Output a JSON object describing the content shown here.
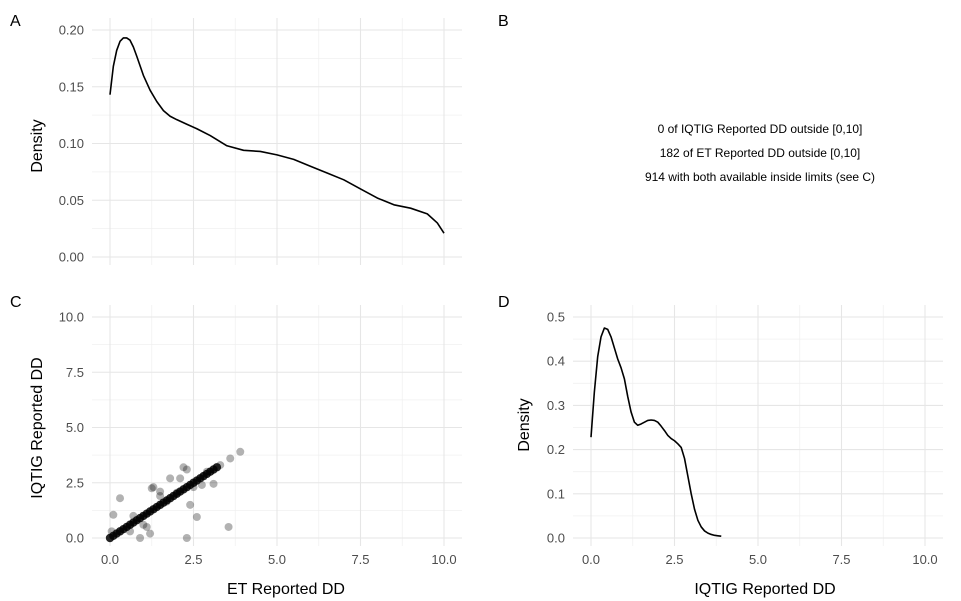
{
  "panels": {
    "a": {
      "label": "A"
    },
    "b": {
      "label": "B"
    },
    "c": {
      "label": "C"
    },
    "d": {
      "label": "D"
    }
  },
  "annotation": {
    "lines": [
      "0 of IQTIG Reported DD outside [0,10]",
      "182 of ET Reported DD outside [0,10]",
      "914 with both available inside limits (see C)"
    ]
  },
  "chart_data": [
    {
      "id": "A",
      "type": "line",
      "title": "",
      "xlabel": "",
      "ylabel": "Density",
      "xlim": [
        0,
        10
      ],
      "ylim": [
        0,
        0.2
      ],
      "xticks": [
        0,
        2.5,
        5,
        7.5,
        10
      ],
      "yticks": [
        0,
        0.05,
        0.1,
        0.15,
        0.2
      ],
      "ytick_labels": [
        "0.00",
        "0.05",
        "0.10",
        "0.15",
        "0.20"
      ],
      "show_xtick_labels": false,
      "grid": true,
      "x": [
        0,
        0.1,
        0.2,
        0.3,
        0.4,
        0.5,
        0.6,
        0.7,
        0.8,
        1.0,
        1.2,
        1.4,
        1.6,
        1.8,
        2.0,
        2.3,
        2.6,
        3.0,
        3.5,
        4.0,
        4.5,
        5.0,
        5.5,
        6.0,
        6.5,
        7.0,
        7.5,
        8.0,
        8.5,
        9.0,
        9.5,
        9.8,
        10.0
      ],
      "y": [
        0.143,
        0.168,
        0.182,
        0.19,
        0.193,
        0.193,
        0.191,
        0.185,
        0.177,
        0.16,
        0.147,
        0.137,
        0.129,
        0.124,
        0.121,
        0.117,
        0.113,
        0.107,
        0.098,
        0.094,
        0.093,
        0.09,
        0.086,
        0.08,
        0.074,
        0.068,
        0.06,
        0.052,
        0.046,
        0.043,
        0.038,
        0.03,
        0.021
      ]
    },
    {
      "id": "C",
      "type": "scatter",
      "title": "",
      "xlabel": "ET Reported DD",
      "ylabel": "IQTIG Reported DD",
      "xlim": [
        0,
        10
      ],
      "ylim": [
        0,
        10
      ],
      "xticks": [
        0,
        2.5,
        5,
        7.5,
        10
      ],
      "xtick_labels": [
        "0.0",
        "2.5",
        "5.0",
        "7.5",
        "10.0"
      ],
      "yticks": [
        0,
        2.5,
        5,
        7.5,
        10
      ],
      "ytick_labels": [
        "0.0",
        "2.5",
        "5.0",
        "7.5",
        "10.0"
      ],
      "grid": true,
      "series": [
        {
          "x": [
            0.1,
            0.3,
            0.6,
            0.9,
            1.0,
            1.2,
            1.3,
            1.5,
            1.7,
            2.2,
            2.3,
            2.3,
            2.4,
            2.6,
            2.75,
            3.1,
            3.55,
            3.9,
            0.05,
            0.7,
            1.1,
            1.25,
            1.5,
            1.8,
            2.0,
            2.1,
            2.5,
            2.9,
            3.3,
            3.6
          ],
          "y": [
            1.05,
            1.8,
            0.3,
            0.0,
            0.6,
            0.2,
            2.3,
            2.1,
            1.65,
            3.2,
            3.1,
            0.0,
            1.5,
            0.95,
            2.4,
            2.45,
            0.5,
            3.9,
            0.3,
            1.0,
            0.5,
            2.25,
            1.9,
            2.7,
            2.05,
            2.7,
            2.3,
            3.0,
            3.3,
            3.6
          ]
        },
        {
          "x": [
            0.0,
            0.1,
            0.2,
            0.3,
            0.4,
            0.5,
            0.6,
            0.7,
            0.8,
            0.9,
            1.0,
            1.1,
            1.2,
            1.3,
            1.4,
            1.5,
            1.6,
            1.7,
            1.8,
            1.9,
            2.0,
            2.1,
            2.2,
            2.3,
            2.4,
            2.5,
            2.6,
            2.7,
            2.8,
            2.9,
            3.0,
            3.1,
            3.2
          ],
          "y": [
            0.0,
            0.1,
            0.2,
            0.3,
            0.4,
            0.5,
            0.6,
            0.7,
            0.8,
            0.9,
            1.0,
            1.1,
            1.2,
            1.3,
            1.4,
            1.5,
            1.6,
            1.7,
            1.8,
            1.9,
            2.0,
            2.1,
            2.2,
            2.3,
            2.4,
            2.5,
            2.6,
            2.7,
            2.8,
            2.9,
            3.0,
            3.1,
            3.2
          ]
        }
      ]
    },
    {
      "id": "D",
      "type": "line",
      "title": "",
      "xlabel": "IQTIG Reported DD",
      "ylabel": "Density",
      "xlim": [
        0,
        10
      ],
      "ylim": [
        0,
        0.5
      ],
      "xticks": [
        0,
        2.5,
        5,
        7.5,
        10
      ],
      "xtick_labels": [
        "0.0",
        "2.5",
        "5.0",
        "7.5",
        "10.0"
      ],
      "yticks": [
        0,
        0.1,
        0.2,
        0.3,
        0.4,
        0.5
      ],
      "ytick_labels": [
        "0.0",
        "0.1",
        "0.2",
        "0.3",
        "0.4",
        "0.5"
      ],
      "grid": true,
      "x": [
        0,
        0.1,
        0.2,
        0.3,
        0.4,
        0.5,
        0.6,
        0.7,
        0.8,
        0.9,
        1.0,
        1.1,
        1.2,
        1.3,
        1.4,
        1.5,
        1.6,
        1.7,
        1.8,
        1.9,
        2.0,
        2.1,
        2.2,
        2.3,
        2.4,
        2.5,
        2.6,
        2.7,
        2.8,
        2.9,
        3.0,
        3.1,
        3.2,
        3.3,
        3.4,
        3.5,
        3.6,
        3.7,
        3.8,
        3.9
      ],
      "y": [
        0.228,
        0.33,
        0.41,
        0.455,
        0.475,
        0.472,
        0.455,
        0.43,
        0.405,
        0.385,
        0.36,
        0.32,
        0.285,
        0.262,
        0.255,
        0.258,
        0.262,
        0.266,
        0.267,
        0.266,
        0.262,
        0.253,
        0.243,
        0.232,
        0.225,
        0.22,
        0.213,
        0.205,
        0.18,
        0.14,
        0.1,
        0.065,
        0.04,
        0.025,
        0.016,
        0.011,
        0.008,
        0.006,
        0.005,
        0.004
      ]
    }
  ]
}
